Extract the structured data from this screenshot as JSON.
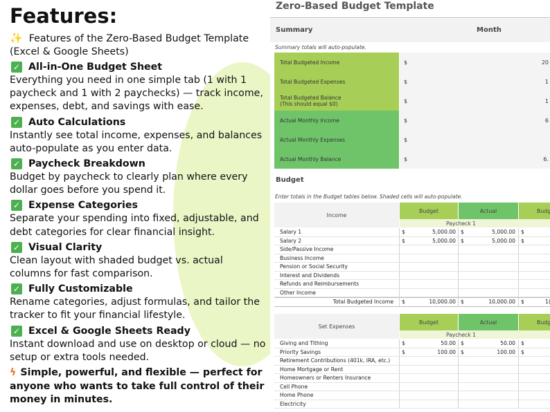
{
  "features": {
    "heading": "Features:",
    "intro_icon": "sparkles-icon",
    "intro": "Features of the Zero-Based Budget Template (Excel & Google Sheets)",
    "items": [
      {
        "title": "All-in-One Budget Sheet",
        "desc": "Everything you need in one simple tab (1 with 1 paycheck and 1 with 2 paychecks) — track income, expenses, debt, and savings with ease."
      },
      {
        "title": "Auto Calculations",
        "desc": "Instantly see total income, expenses, and balances auto-populate as you enter data."
      },
      {
        "title": "Paycheck Breakdown",
        "desc": "Budget by paycheck to clearly plan where every dollar goes before you spend it."
      },
      {
        "title": "Expense Categories",
        "desc": "Separate your spending into fixed, adjustable, and debt categories for clear financial insight."
      },
      {
        "title": "Visual Clarity",
        "desc": "Clean layout with shaded budget vs. actual columns for fast comparison."
      },
      {
        "title": "Fully Customizable",
        "desc": "Rename categories, adjust formulas, and tailor the tracker to fit your financial lifestyle."
      },
      {
        "title": "Excel & Google Sheets Ready",
        "desc": "Instant download and use on desktop or cloud — no setup or extra tools needed."
      }
    ],
    "closing": "Simple, powerful, and flexible — perfect for anyone who wants to take full control of their money in minutes."
  },
  "sheet": {
    "title": "Zero-Based Budget Template",
    "summary_label": "Summary",
    "month_label": "Month",
    "summary_note": "Summary totals will auto-populate.",
    "summary_rows": [
      {
        "label": "Total Budgeted Income",
        "sub": "",
        "currency": "$",
        "value": "20"
      },
      {
        "label": "Total Budgeted Expenses",
        "sub": "",
        "currency": "$",
        "value": "1"
      },
      {
        "label": "Total Budgeted Balance",
        "sub": "(This should equal $0)",
        "currency": "$",
        "value": "1"
      },
      {
        "label": "Actual Monthly Income",
        "sub": "",
        "currency": "$",
        "value": "6"
      },
      {
        "label": "Actual Monthly Expenses",
        "sub": "",
        "currency": "$",
        "value": ""
      },
      {
        "label": "Actual Monthly Balance",
        "sub": "",
        "currency": "$",
        "value": "6."
      }
    ],
    "budget_label": "Budget",
    "budget_note": "Enter totals in the Budget tables below. Shaded cells will auto-populate.",
    "income_table": {
      "category": "Income",
      "budget_col": "Budget",
      "actual_col": "Actual",
      "budget_col2": "Budg",
      "paycheck": "Paycheck 1",
      "rows": [
        {
          "name": "Salary 1",
          "d1": "$",
          "budget": "5,000.00",
          "d2": "$",
          "actual": "5,000.00",
          "d3": "$",
          "v3": ""
        },
        {
          "name": "Salary 2",
          "d1": "$",
          "budget": "5,000.00",
          "d2": "$",
          "actual": "5,000.00",
          "d3": "$",
          "v3": ""
        },
        {
          "name": "Side/Passive Income",
          "d1": "",
          "budget": "",
          "d2": "",
          "actual": "",
          "d3": "",
          "v3": ""
        },
        {
          "name": "Business Income",
          "d1": "",
          "budget": "",
          "d2": "",
          "actual": "",
          "d3": "",
          "v3": ""
        },
        {
          "name": "Pension or Social Security",
          "d1": "",
          "budget": "",
          "d2": "",
          "actual": "",
          "d3": "",
          "v3": ""
        },
        {
          "name": "Interest and Dividends",
          "d1": "",
          "budget": "",
          "d2": "",
          "actual": "",
          "d3": "",
          "v3": ""
        },
        {
          "name": "Refunds and Reimbursements",
          "d1": "",
          "budget": "",
          "d2": "",
          "actual": "",
          "d3": "",
          "v3": ""
        },
        {
          "name": "Other Income",
          "d1": "",
          "budget": "",
          "d2": "",
          "actual": "",
          "d3": "",
          "v3": ""
        }
      ],
      "total": {
        "name": "Total Budgeted Income",
        "d1": "$",
        "budget": "10,000.00",
        "d2": "$",
        "actual": "10,000.00",
        "d3": "$",
        "v3": "1("
      }
    },
    "expense_table": {
      "category": "Set Expenses",
      "budget_col": "Budget",
      "actual_col": "Actual",
      "budget_col2": "Budg",
      "paycheck": "Paycheck 1",
      "rows": [
        {
          "name": "Giving and Tithing",
          "d1": "$",
          "budget": "50.00",
          "d2": "$",
          "actual": "50.00",
          "d3": "$",
          "v3": ""
        },
        {
          "name": "Priority Savings",
          "d1": "$",
          "budget": "100.00",
          "d2": "$",
          "actual": "100.00",
          "d3": "$",
          "v3": ""
        },
        {
          "name": "Retirement Contributions (401k, IRA, etc.)",
          "d1": "",
          "budget": "",
          "d2": "",
          "actual": "",
          "d3": "",
          "v3": ""
        },
        {
          "name": "Home Mortgage or Rent",
          "d1": "",
          "budget": "",
          "d2": "",
          "actual": "",
          "d3": "",
          "v3": ""
        },
        {
          "name": "Homeowners or Renters Insurance",
          "d1": "",
          "budget": "",
          "d2": "",
          "actual": "",
          "d3": "",
          "v3": ""
        },
        {
          "name": "Cell Phone",
          "d1": "",
          "budget": "",
          "d2": "",
          "actual": "",
          "d3": "",
          "v3": ""
        },
        {
          "name": "Home Phone",
          "d1": "",
          "budget": "",
          "d2": "",
          "actual": "",
          "d3": "",
          "v3": ""
        },
        {
          "name": "Electricity",
          "d1": "",
          "budget": "",
          "d2": "",
          "actual": "",
          "d3": "",
          "v3": ""
        }
      ]
    }
  },
  "colors": {
    "lime": "#a7cf57",
    "green": "#6fc46a",
    "check": "#4caf50",
    "blob": "#eaf6c6"
  }
}
